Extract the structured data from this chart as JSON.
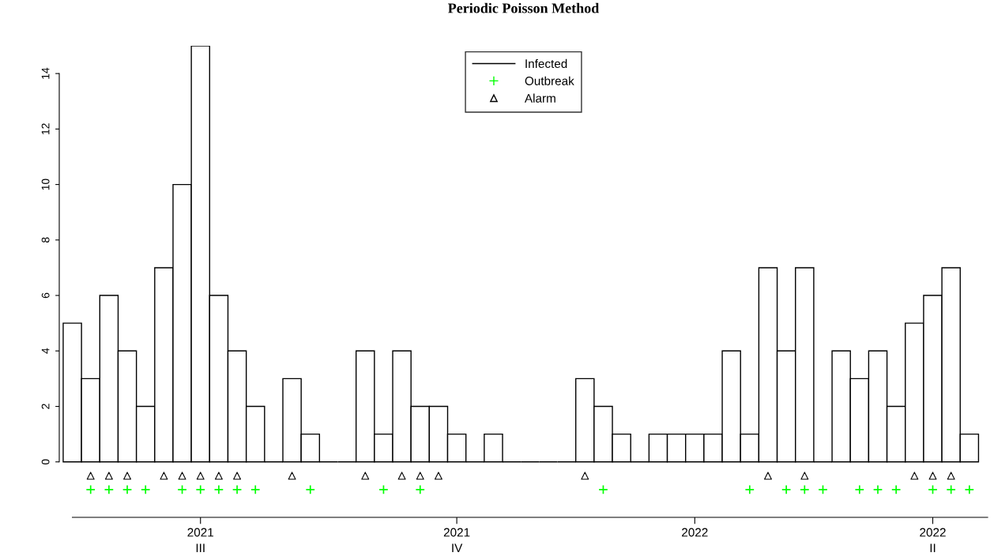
{
  "chart_data": {
    "type": "bar",
    "title": "Periodic Poisson Method",
    "x": [
      "2021-05-13",
      "2021-05-20",
      "2021-05-27",
      "2021-06-03",
      "2021-06-10",
      "2021-06-17",
      "2021-06-24",
      "2021-07-01",
      "2021-07-08",
      "2021-07-15",
      "2021-07-22",
      "2021-07-29",
      "2021-08-05",
      "2021-08-12",
      "2021-08-19",
      "2021-08-26",
      "2021-09-02",
      "2021-09-09",
      "2021-09-16",
      "2021-09-23",
      "2021-09-30",
      "2021-10-07",
      "2021-10-14",
      "2021-10-21",
      "2021-10-28",
      "2021-11-04",
      "2021-11-11",
      "2021-11-18",
      "2021-11-25",
      "2021-12-02",
      "2021-12-09",
      "2021-12-16",
      "2021-12-23",
      "2021-12-30",
      "2022-01-06",
      "2022-01-13",
      "2022-01-20",
      "2022-01-27",
      "2022-02-03",
      "2022-02-10",
      "2022-02-17",
      "2022-02-24",
      "2022-03-03",
      "2022-03-10",
      "2022-03-17",
      "2022-03-24",
      "2022-03-31",
      "2022-04-07",
      "2022-04-14",
      "2022-04-21"
    ],
    "series": [
      {
        "name": "Infected",
        "color": "#000000",
        "values": [
          5,
          3,
          6,
          4,
          2,
          7,
          10,
          15,
          6,
          4,
          2,
          0,
          3,
          1,
          0,
          0,
          4,
          1,
          4,
          2,
          2,
          1,
          0,
          1,
          0,
          0,
          0,
          0,
          3,
          2,
          1,
          0,
          1,
          1,
          1,
          1,
          4,
          1,
          7,
          4,
          7,
          0,
          4,
          3,
          4,
          2,
          5,
          6,
          7,
          1
        ]
      },
      {
        "name": "Outbreak",
        "type": "scatter",
        "marker": "cross",
        "color": "#00ff00",
        "values": [
          null,
          -1,
          -1,
          -1,
          -1,
          null,
          -1,
          -1,
          -1,
          -1,
          -1,
          null,
          null,
          -1,
          null,
          null,
          null,
          -1,
          null,
          -1,
          null,
          null,
          null,
          null,
          null,
          null,
          null,
          null,
          null,
          -1,
          null,
          null,
          null,
          null,
          null,
          null,
          null,
          -1,
          null,
          -1,
          -1,
          -1,
          null,
          -1,
          -1,
          -1,
          null,
          -1,
          -1,
          -1
        ]
      },
      {
        "name": "Alarm",
        "type": "scatter",
        "marker": "triangle",
        "color": "#000000",
        "values": [
          null,
          -0.5,
          -0.5,
          -0.5,
          null,
          -0.5,
          -0.5,
          -0.5,
          -0.5,
          -0.5,
          null,
          null,
          -0.5,
          null,
          null,
          null,
          -0.5,
          null,
          -0.5,
          -0.5,
          -0.5,
          null,
          null,
          null,
          null,
          null,
          null,
          null,
          -0.5,
          null,
          null,
          null,
          null,
          null,
          null,
          null,
          null,
          null,
          -0.5,
          null,
          -0.5,
          null,
          null,
          null,
          null,
          null,
          -0.5,
          -0.5,
          -0.5,
          null
        ]
      }
    ],
    "xlim": [
      "2021-05-08",
      "2022-04-28"
    ],
    "xticks": [
      {
        "value": "2021-07-01",
        "label": "2021\nIII"
      },
      {
        "value": "2021-10-07",
        "label": "2021\nIV"
      },
      {
        "value": "2022-01-06",
        "label": "2022"
      },
      {
        "value": "2022-04-07",
        "label": "2022\nII"
      }
    ],
    "ylim": [
      -2,
      15
    ],
    "yticks": [
      0,
      2,
      4,
      6,
      8,
      10,
      12,
      14
    ],
    "grid": false,
    "legend": "top"
  }
}
